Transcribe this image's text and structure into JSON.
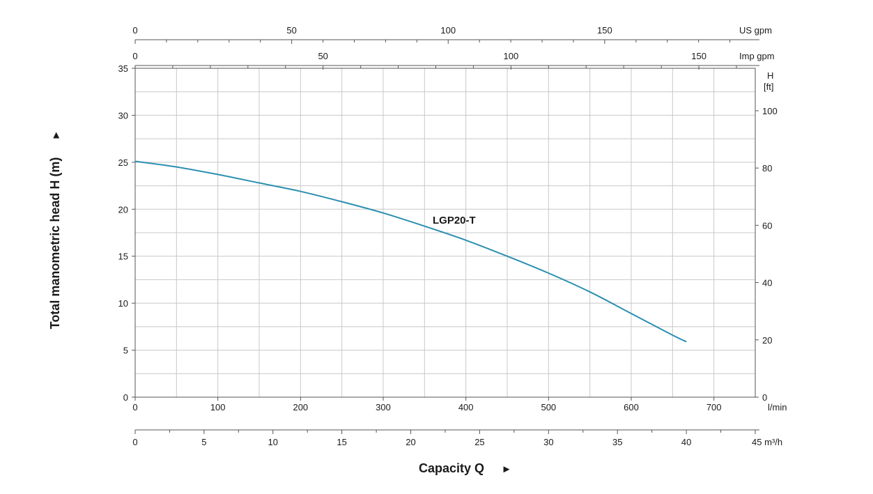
{
  "chart_data": {
    "type": "line",
    "title": "",
    "series_color": "#2a8fb0",
    "ylabel": "Total manometric head H (m)",
    "ylabel_arrow": "►",
    "xlabel": "Capacity Q",
    "xlabel_arrow": "►",
    "x_unit": "l/min",
    "y_unit": "m",
    "xlim": [
      0,
      750
    ],
    "ylim": [
      0,
      35
    ],
    "grid": true,
    "x_ticks": [
      0,
      100,
      200,
      300,
      400,
      500,
      600,
      700
    ],
    "y_ticks": [
      0,
      5,
      10,
      15,
      20,
      25,
      30,
      35
    ],
    "series": [
      {
        "name": "LGP20-T",
        "x": [
          0,
          50,
          100,
          150,
          200,
          250,
          300,
          350,
          400,
          450,
          500,
          550,
          600,
          650,
          666.7
        ],
        "y": [
          25.1,
          24.5,
          23.7,
          22.8,
          21.9,
          20.8,
          19.6,
          18.2,
          16.7,
          15.0,
          13.2,
          11.2,
          8.9,
          6.6,
          5.9
        ]
      }
    ],
    "secondary_axes": {
      "us_gpm": {
        "label": "US gpm",
        "position": "top",
        "ticks": [
          0,
          50,
          100,
          150
        ],
        "max": 198.1
      },
      "imp_gpm": {
        "label": "Imp gpm",
        "position": "top",
        "ticks": [
          0,
          50,
          100,
          150
        ],
        "max": 165.0
      },
      "m3h": {
        "label": "45 m³/h",
        "position": "bottom",
        "ticks": [
          0,
          5,
          10,
          15,
          20,
          25,
          30,
          35,
          40
        ],
        "end_value": 45,
        "max": 45
      },
      "head_ft": {
        "label_line1": "H",
        "label_line2": "[ft]",
        "position": "right",
        "ticks": [
          0,
          20,
          40,
          60,
          80,
          100
        ],
        "max": 114.83
      }
    }
  }
}
